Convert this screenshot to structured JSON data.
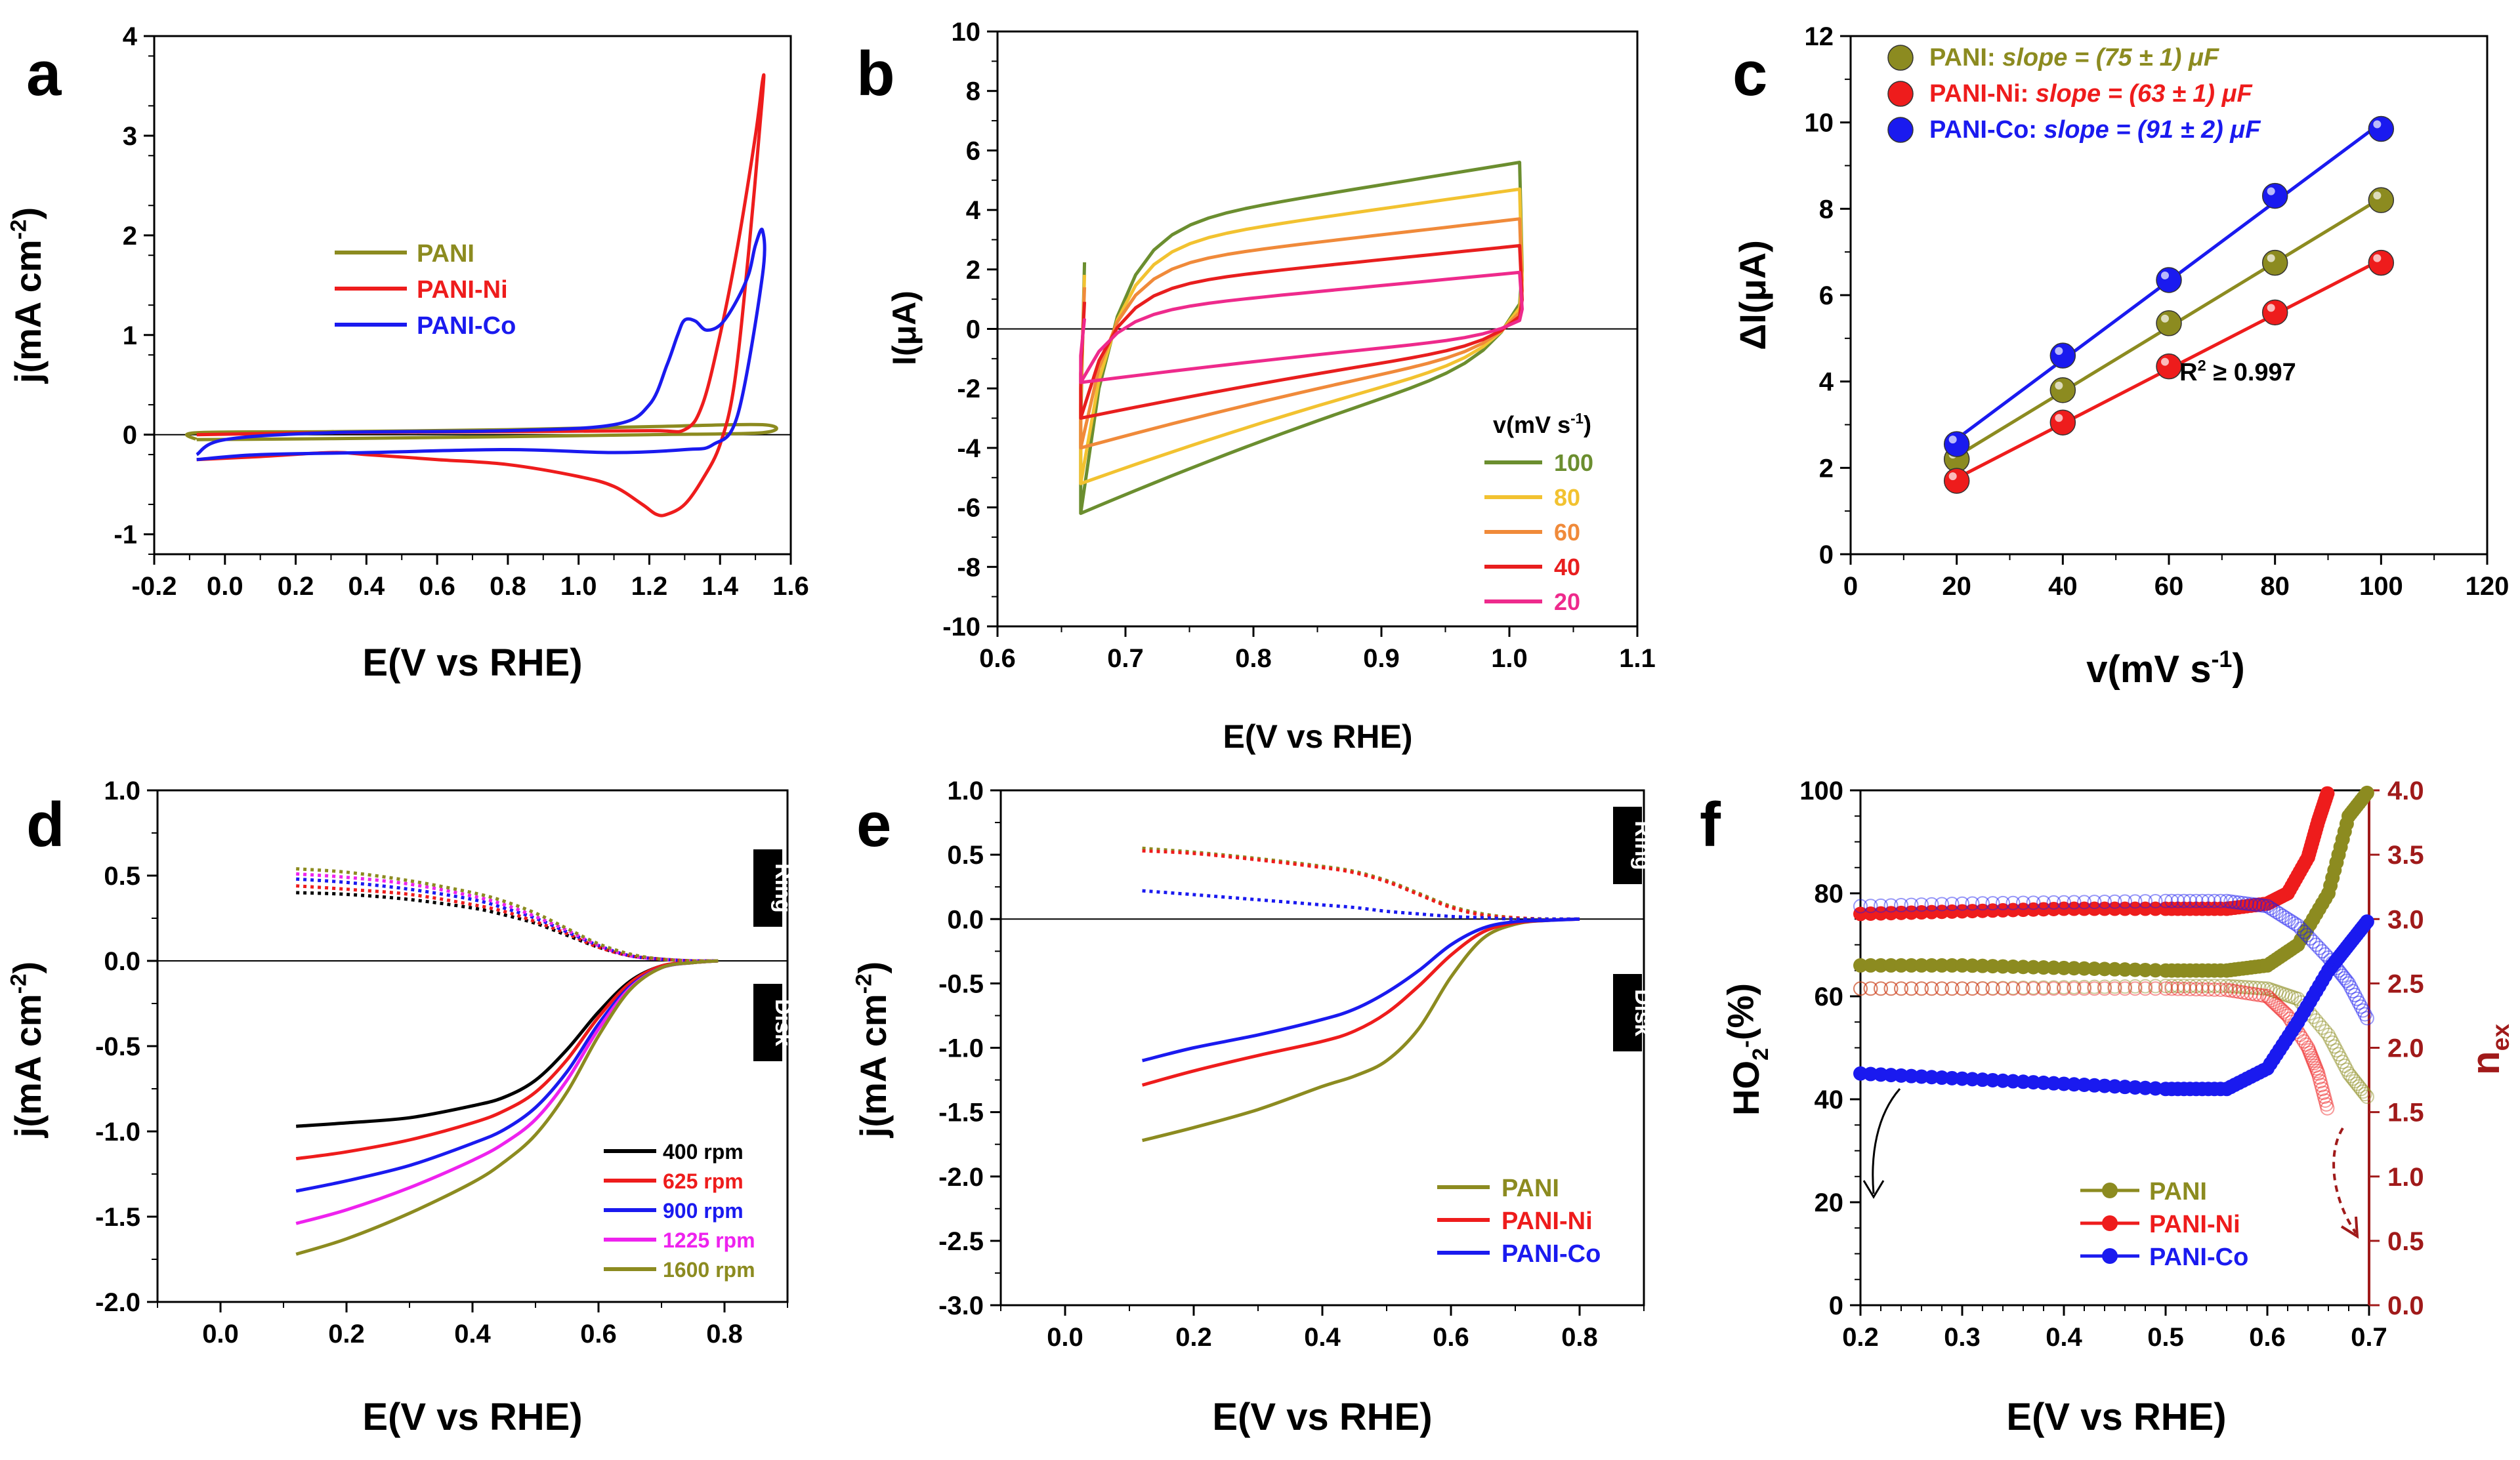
{
  "colors": {
    "pani": "#8c8b20",
    "ni": "#ee1c1c",
    "co": "#1a1aef",
    "black": "#000000",
    "magenta": "#ee22ee",
    "v100": "#6b8e2f",
    "v80": "#f2c230",
    "v60": "#f08a3a",
    "v40": "#e81e1e",
    "v20": "#ee2a8c",
    "darkred": "#a01a1a"
  },
  "chart_data": [
    {
      "panel": "a",
      "type": "line",
      "xlabel": "E(V vs RHE)",
      "ylabel": "j(mA cm-2)",
      "xlim": [
        -0.2,
        1.6
      ],
      "ylim": [
        -1.2,
        4.0
      ],
      "xticks": [
        "-0.2",
        "0.0",
        "0.2",
        "0.4",
        "0.6",
        "0.8",
        "1.0",
        "1.2",
        "1.4",
        "1.6"
      ],
      "yticks": [
        "-1",
        "0",
        "1",
        "2",
        "3",
        "4"
      ],
      "legend": [
        "PANI",
        "PANI-Ni",
        "PANI-Co"
      ],
      "series": [
        {
          "name": "PANI",
          "x": [
            -0.08,
            0.3,
            0.8,
            1.2,
            1.52,
            1.52,
            1.2,
            0.8,
            0.3,
            -0.08,
            -0.08
          ],
          "y": [
            -0.05,
            -0.04,
            -0.02,
            0.0,
            0.02,
            0.1,
            0.08,
            0.05,
            0.03,
            0.02,
            -0.05
          ]
        },
        {
          "name": "PANI-Ni",
          "x": [
            -0.08,
            0.3,
            0.8,
            1.2,
            1.3,
            1.35,
            1.4,
            1.45,
            1.5,
            1.52,
            1.52,
            1.48,
            1.44,
            1.4,
            1.35,
            1.3,
            1.25,
            1.22,
            1.18,
            1.1,
            1.0,
            0.8,
            0.6,
            0.4,
            0.3,
            0.1,
            -0.08
          ],
          "y": [
            0.0,
            0.02,
            0.03,
            0.04,
            0.05,
            0.3,
            1.0,
            1.9,
            3.0,
            3.55,
            3.4,
            1.8,
            0.5,
            -0.1,
            -0.45,
            -0.7,
            -0.8,
            -0.8,
            -0.7,
            -0.52,
            -0.42,
            -0.3,
            -0.25,
            -0.2,
            -0.18,
            -0.22,
            -0.25
          ]
        },
        {
          "name": "PANI-Co",
          "x": [
            -0.08,
            0.0,
            0.3,
            0.8,
            1.1,
            1.2,
            1.25,
            1.28,
            1.3,
            1.33,
            1.36,
            1.4,
            1.44,
            1.48,
            1.5,
            1.52,
            1.52,
            1.45,
            1.38,
            1.3,
            1.1,
            0.8,
            0.4,
            0.1,
            -0.08
          ],
          "y": [
            -0.2,
            -0.05,
            0.02,
            0.04,
            0.1,
            0.3,
            0.7,
            1.0,
            1.15,
            1.14,
            1.05,
            1.1,
            1.3,
            1.6,
            1.9,
            2.05,
            1.6,
            0.2,
            -0.1,
            -0.15,
            -0.18,
            -0.15,
            -0.18,
            -0.2,
            -0.25
          ]
        }
      ]
    },
    {
      "panel": "b",
      "type": "line",
      "xlabel": "E(V vs RHE)",
      "ylabel": "I(μA)",
      "xlim": [
        0.6,
        1.1
      ],
      "ylim": [
        -10,
        10
      ],
      "xticks": [
        "0.6",
        "0.7",
        "0.8",
        "0.9",
        "1.0",
        "1.1"
      ],
      "yticks": [
        "-10",
        "-8",
        "-6",
        "-4",
        "-2",
        "0",
        "2",
        "4",
        "6",
        "8",
        "10"
      ],
      "legend_title": "v(mV s-1)",
      "legend": [
        "100",
        "80",
        "60",
        "40",
        "20"
      ],
      "series": [
        {
          "name": "100",
          "top_start": 3.2,
          "top_end": 5.6,
          "bottom_start": -6.2,
          "bottom_end": -1.2
        },
        {
          "name": "80",
          "top_start": 2.6,
          "top_end": 4.7,
          "bottom_start": -5.2,
          "bottom_end": -1.0
        },
        {
          "name": "60",
          "top_start": 2.0,
          "top_end": 3.7,
          "bottom_start": -4.0,
          "bottom_end": -0.8
        },
        {
          "name": "40",
          "top_start": 1.3,
          "top_end": 2.8,
          "bottom_start": -3.0,
          "bottom_end": -0.6
        },
        {
          "name": "20",
          "top_start": 0.5,
          "top_end": 1.9,
          "bottom_start": -1.8,
          "bottom_end": -0.3
        }
      ]
    },
    {
      "panel": "c",
      "type": "scatter",
      "xlabel": "v(mV s-1)",
      "ylabel": "ΔI(μA)",
      "xlim": [
        0,
        120
      ],
      "ylim": [
        0,
        12
      ],
      "xticks": [
        "0",
        "20",
        "40",
        "60",
        "80",
        "100",
        "120"
      ],
      "yticks": [
        "0",
        "2",
        "4",
        "6",
        "8",
        "10",
        "12"
      ],
      "annotation": "R2 ≥ 0.997",
      "legend": [
        {
          "name": "PANI:",
          "slope": "slope = (75 ± 1) μF"
        },
        {
          "name": "PANI-Ni:",
          "slope": "slope = (63 ± 1) μF"
        },
        {
          "name": "PANI-Co:",
          "slope": "slope = (91 ± 2) μF"
        }
      ],
      "series": [
        {
          "name": "PANI",
          "x": [
            20,
            40,
            60,
            80,
            100
          ],
          "y": [
            2.2,
            3.8,
            5.35,
            6.75,
            8.2
          ]
        },
        {
          "name": "PANI-Ni",
          "x": [
            20,
            40,
            60,
            80,
            100
          ],
          "y": [
            1.7,
            3.05,
            4.35,
            5.6,
            6.75
          ]
        },
        {
          "name": "PANI-Co",
          "x": [
            20,
            40,
            60,
            80,
            100
          ],
          "y": [
            2.55,
            4.6,
            6.35,
            8.3,
            9.85
          ]
        }
      ]
    },
    {
      "panel": "d",
      "type": "line",
      "xlabel": "E(V vs RHE)",
      "ylabel": "j(mA cm-2)",
      "xlim": [
        -0.1,
        0.9
      ],
      "ylim": [
        -2.0,
        1.0
      ],
      "xticks": [
        "0.0",
        "0.2",
        "0.4",
        "0.6",
        "0.8"
      ],
      "yticks": [
        "-2.0",
        "-1.5",
        "-1.0",
        "-0.5",
        "0.0",
        "0.5",
        "1.0"
      ],
      "tags": [
        "Ring",
        "Disk"
      ],
      "legend": [
        "400 rpm",
        "625 rpm",
        "900 rpm",
        "1225 rpm",
        "1600 rpm"
      ],
      "x": [
        0.12,
        0.2,
        0.3,
        0.4,
        0.45,
        0.5,
        0.55,
        0.6,
        0.65,
        0.7,
        0.75,
        0.79
      ],
      "series": [
        {
          "name": "400 rpm",
          "disk": [
            -0.97,
            -0.95,
            -0.92,
            -0.85,
            -0.8,
            -0.7,
            -0.52,
            -0.3,
            -0.12,
            -0.03,
            -0.01,
            0.0
          ],
          "ring": [
            0.4,
            0.39,
            0.36,
            0.31,
            0.27,
            0.22,
            0.15,
            0.08,
            0.03,
            0.01,
            0.0,
            0.0
          ]
        },
        {
          "name": "625 rpm",
          "disk": [
            -1.16,
            -1.12,
            -1.05,
            -0.95,
            -0.88,
            -0.77,
            -0.58,
            -0.33,
            -0.13,
            -0.03,
            -0.01,
            0.0
          ],
          "ring": [
            0.44,
            0.42,
            0.39,
            0.33,
            0.29,
            0.23,
            0.16,
            0.08,
            0.03,
            0.01,
            0.0,
            0.0
          ]
        },
        {
          "name": "900 rpm",
          "disk": [
            -1.35,
            -1.29,
            -1.2,
            -1.07,
            -0.99,
            -0.86,
            -0.65,
            -0.37,
            -0.15,
            -0.04,
            -0.01,
            0.0
          ],
          "ring": [
            0.48,
            0.46,
            0.42,
            0.36,
            0.31,
            0.25,
            0.17,
            0.09,
            0.03,
            0.01,
            0.0,
            0.0
          ]
        },
        {
          "name": "1225 rpm",
          "disk": [
            -1.54,
            -1.46,
            -1.33,
            -1.17,
            -1.07,
            -0.93,
            -0.7,
            -0.4,
            -0.16,
            -0.04,
            -0.01,
            0.0
          ],
          "ring": [
            0.51,
            0.49,
            0.45,
            0.38,
            0.33,
            0.26,
            0.18,
            0.09,
            0.03,
            0.01,
            0.0,
            0.0
          ]
        },
        {
          "name": "1600 rpm",
          "disk": [
            -1.72,
            -1.63,
            -1.48,
            -1.3,
            -1.18,
            -1.02,
            -0.77,
            -0.44,
            -0.17,
            -0.04,
            -0.01,
            0.0
          ],
          "ring": [
            0.54,
            0.52,
            0.47,
            0.4,
            0.35,
            0.28,
            0.19,
            0.1,
            0.04,
            0.01,
            0.0,
            0.0
          ]
        }
      ]
    },
    {
      "panel": "e",
      "type": "line",
      "xlabel": "E(V vs RHE)",
      "ylabel": "j(mA cm-2)",
      "xlim": [
        -0.1,
        0.9
      ],
      "ylim": [
        -3.0,
        1.0
      ],
      "xticks": [
        "0.0",
        "0.2",
        "0.4",
        "0.6",
        "0.8"
      ],
      "yticks": [
        "-3.0",
        "-2.5",
        "-2.0",
        "-1.5",
        "-1.0",
        "-0.5",
        "0.0",
        "0.5",
        "1.0"
      ],
      "tags": [
        "Ring",
        "Disk"
      ],
      "legend": [
        "PANI",
        "PANI-Ni",
        "PANI-Co"
      ],
      "x": [
        0.12,
        0.2,
        0.3,
        0.4,
        0.45,
        0.5,
        0.55,
        0.6,
        0.65,
        0.7,
        0.75,
        0.8
      ],
      "series": [
        {
          "name": "PANI",
          "disk": [
            -1.72,
            -1.62,
            -1.48,
            -1.3,
            -1.22,
            -1.1,
            -0.85,
            -0.45,
            -0.15,
            -0.04,
            -0.01,
            0.0
          ],
          "ring": [
            0.55,
            0.52,
            0.47,
            0.41,
            0.37,
            0.3,
            0.2,
            0.1,
            0.04,
            0.01,
            0.0,
            0.0
          ]
        },
        {
          "name": "PANI-Ni",
          "disk": [
            -1.29,
            -1.18,
            -1.06,
            -0.95,
            -0.87,
            -0.73,
            -0.52,
            -0.28,
            -0.1,
            -0.03,
            -0.01,
            0.0
          ],
          "ring": [
            0.53,
            0.51,
            0.46,
            0.4,
            0.36,
            0.29,
            0.19,
            0.09,
            0.03,
            0.01,
            0.0,
            0.0
          ]
        },
        {
          "name": "PANI-Co",
          "disk": [
            -1.1,
            -1.0,
            -0.9,
            -0.78,
            -0.7,
            -0.57,
            -0.4,
            -0.2,
            -0.07,
            -0.02,
            -0.01,
            0.0
          ],
          "ring": [
            0.22,
            0.19,
            0.15,
            0.11,
            0.09,
            0.06,
            0.04,
            0.02,
            0.01,
            0.0,
            0.0,
            0.0
          ]
        }
      ]
    },
    {
      "panel": "f",
      "type": "line",
      "xlabel": "E(V vs RHE)",
      "ylabel": "HO2-(%)",
      "y2label": "nex",
      "xlim": [
        0.2,
        0.7
      ],
      "ylim": [
        0,
        100
      ],
      "y2lim": [
        0,
        4.0
      ],
      "xticks": [
        "0.2",
        "0.3",
        "0.4",
        "0.5",
        "0.6",
        "0.7"
      ],
      "yticks": [
        "0",
        "20",
        "40",
        "60",
        "80",
        "100"
      ],
      "y2ticks": [
        "0.0",
        "0.5",
        "1.0",
        "1.5",
        "2.0",
        "2.5",
        "3.0",
        "3.5",
        "4.0"
      ],
      "legend": [
        "PANI",
        "PANI-Ni",
        "PANI-Co"
      ],
      "series": [
        {
          "name": "PANI",
          "x": [
            0.2,
            0.3,
            0.4,
            0.5,
            0.56,
            0.6,
            0.63,
            0.66,
            0.68,
            0.7
          ],
          "ho2": [
            66,
            66,
            65.5,
            65,
            65,
            66,
            70,
            80,
            95,
            100
          ],
          "nex": [
            2.46,
            2.46,
            2.47,
            2.48,
            2.48,
            2.46,
            2.38,
            2.1,
            1.8,
            1.6
          ]
        },
        {
          "name": "PANI-Ni",
          "x": [
            0.2,
            0.3,
            0.4,
            0.5,
            0.56,
            0.6,
            0.62,
            0.64,
            0.65,
            0.66
          ],
          "ho2": [
            76,
            76.5,
            77,
            77,
            77,
            78,
            80,
            87,
            94,
            100
          ],
          "nex": [
            2.46,
            2.46,
            2.46,
            2.46,
            2.45,
            2.4,
            2.25,
            2.0,
            1.8,
            1.5
          ]
        },
        {
          "name": "PANI-Co",
          "x": [
            0.2,
            0.3,
            0.4,
            0.5,
            0.56,
            0.6,
            0.63,
            0.66,
            0.68,
            0.7
          ],
          "ho2": [
            45,
            44,
            43,
            42,
            42,
            46,
            55,
            65,
            70,
            75
          ],
          "nex": [
            3.1,
            3.12,
            3.13,
            3.14,
            3.14,
            3.1,
            2.95,
            2.7,
            2.5,
            2.2
          ]
        }
      ]
    }
  ],
  "panel_labels": [
    "a",
    "b",
    "c",
    "d",
    "e",
    "f"
  ]
}
